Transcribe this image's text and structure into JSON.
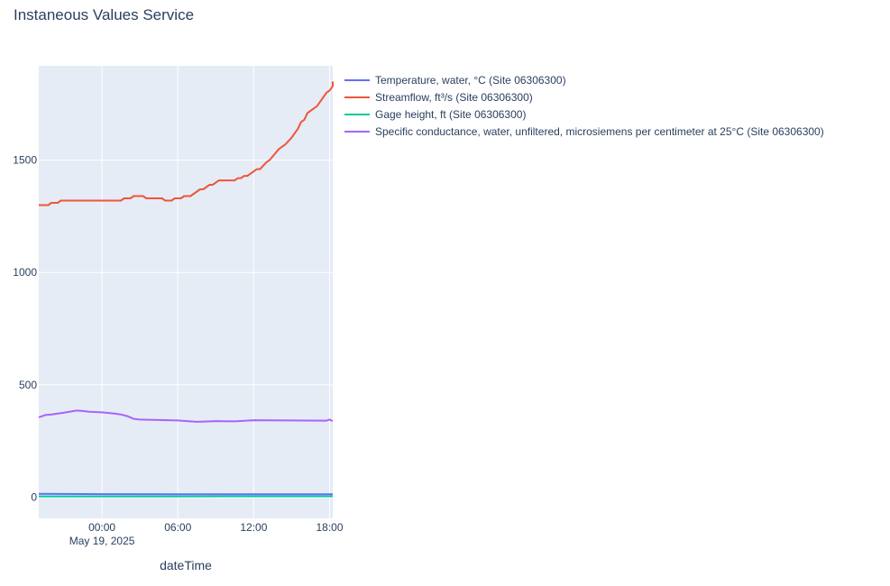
{
  "chart_data": {
    "type": "line",
    "title": "Instaneous Values Service",
    "xlabel": "dateTime",
    "ylabel": "",
    "x_range": [
      "2025-05-18 19:00",
      "2025-05-19 18:15"
    ],
    "ylim": [
      -95,
      1920
    ],
    "grid": true,
    "legend_placement": "top-right outside",
    "plot_bgcolor": "#e5ecf6",
    "x_ticks": [
      {
        "x": "2025-05-19 00:00",
        "label": "00:00",
        "sublabel": "May 19, 2025"
      },
      {
        "x": "2025-05-19 06:00",
        "label": "06:00",
        "sublabel": ""
      },
      {
        "x": "2025-05-19 12:00",
        "label": "12:00",
        "sublabel": ""
      },
      {
        "x": "2025-05-19 18:00",
        "label": "18:00",
        "sublabel": ""
      }
    ],
    "y_ticks": [
      0,
      500,
      1000,
      1500
    ],
    "y_tick_labels": [
      "0",
      "500",
      "1000",
      "1500"
    ],
    "series": [
      {
        "name": "Temperature, water, °C (Site 06306300)",
        "color": "#636efa",
        "points": [
          [
            "2025-05-18 19:00",
            14
          ],
          [
            "2025-05-19 00:00",
            13
          ],
          [
            "2025-05-19 06:00",
            12
          ],
          [
            "2025-05-19 12:00",
            12
          ],
          [
            "2025-05-19 18:15",
            12
          ]
        ]
      },
      {
        "name": "Streamflow, ft³/s (Site 06306300)",
        "color": "#ef553b",
        "points": [
          [
            "2025-05-18 19:00",
            1300
          ],
          [
            "2025-05-18 19:45",
            1300
          ],
          [
            "2025-05-18 20:00",
            1310
          ],
          [
            "2025-05-18 20:30",
            1310
          ],
          [
            "2025-05-18 20:45",
            1320
          ],
          [
            "2025-05-19 00:00",
            1320
          ],
          [
            "2025-05-19 01:30",
            1320
          ],
          [
            "2025-05-19 01:45",
            1330
          ],
          [
            "2025-05-19 02:15",
            1330
          ],
          [
            "2025-05-19 02:30",
            1340
          ],
          [
            "2025-05-19 03:15",
            1340
          ],
          [
            "2025-05-19 03:30",
            1330
          ],
          [
            "2025-05-19 04:45",
            1330
          ],
          [
            "2025-05-19 05:00",
            1320
          ],
          [
            "2025-05-19 05:30",
            1320
          ],
          [
            "2025-05-19 05:45",
            1330
          ],
          [
            "2025-05-19 06:15",
            1330
          ],
          [
            "2025-05-19 06:30",
            1340
          ],
          [
            "2025-05-19 07:00",
            1340
          ],
          [
            "2025-05-19 07:45",
            1370
          ],
          [
            "2025-05-19 08:00",
            1370
          ],
          [
            "2025-05-19 08:30",
            1390
          ],
          [
            "2025-05-19 08:45",
            1390
          ],
          [
            "2025-05-19 09:15",
            1410
          ],
          [
            "2025-05-19 10:30",
            1410
          ],
          [
            "2025-05-19 10:45",
            1420
          ],
          [
            "2025-05-19 11:00",
            1420
          ],
          [
            "2025-05-19 11:15",
            1430
          ],
          [
            "2025-05-19 11:30",
            1430
          ],
          [
            "2025-05-19 12:00",
            1450
          ],
          [
            "2025-05-19 12:15",
            1460
          ],
          [
            "2025-05-19 12:30",
            1460
          ],
          [
            "2025-05-19 13:00",
            1490
          ],
          [
            "2025-05-19 13:15",
            1500
          ],
          [
            "2025-05-19 14:00",
            1550
          ],
          [
            "2025-05-19 14:30",
            1570
          ],
          [
            "2025-05-19 15:00",
            1600
          ],
          [
            "2025-05-19 15:30",
            1640
          ],
          [
            "2025-05-19 15:45",
            1670
          ],
          [
            "2025-05-19 16:00",
            1680
          ],
          [
            "2025-05-19 16:15",
            1710
          ],
          [
            "2025-05-19 16:30",
            1720
          ],
          [
            "2025-05-19 17:00",
            1740
          ],
          [
            "2025-05-19 17:30",
            1780
          ],
          [
            "2025-05-19 17:45",
            1800
          ],
          [
            "2025-05-19 18:00",
            1810
          ],
          [
            "2025-05-19 18:15",
            1830
          ],
          [
            "2025-05-19 18:15",
            1850
          ]
        ]
      },
      {
        "name": "Gage height, ft (Site 06306300)",
        "color": "#00cc96",
        "points": [
          [
            "2025-05-18 19:00",
            3
          ],
          [
            "2025-05-19 00:00",
            3
          ],
          [
            "2025-05-19 06:00",
            3
          ],
          [
            "2025-05-19 12:00",
            3.2
          ],
          [
            "2025-05-19 18:15",
            3.5
          ]
        ]
      },
      {
        "name": "Specific conductance, water, unfiltered, microsiemens per centimeter at 25°C (Site 06306300)",
        "color": "#ab63fa",
        "points": [
          [
            "2025-05-18 19:00",
            355
          ],
          [
            "2025-05-18 19:30",
            365
          ],
          [
            "2025-05-18 20:00",
            368
          ],
          [
            "2025-05-18 21:00",
            376
          ],
          [
            "2025-05-18 22:00",
            385
          ],
          [
            "2025-05-18 22:30",
            383
          ],
          [
            "2025-05-18 23:00",
            380
          ],
          [
            "2025-05-19 00:00",
            377
          ],
          [
            "2025-05-19 01:00",
            372
          ],
          [
            "2025-05-19 01:30",
            368
          ],
          [
            "2025-05-19 02:00",
            360
          ],
          [
            "2025-05-19 02:30",
            348
          ],
          [
            "2025-05-19 03:00",
            345
          ],
          [
            "2025-05-19 04:30",
            343
          ],
          [
            "2025-05-19 06:00",
            341
          ],
          [
            "2025-05-19 07:30",
            335
          ],
          [
            "2025-05-19 09:00",
            338
          ],
          [
            "2025-05-19 10:30",
            337
          ],
          [
            "2025-05-19 12:00",
            342
          ],
          [
            "2025-05-19 15:00",
            341
          ],
          [
            "2025-05-19 17:45",
            340
          ],
          [
            "2025-05-19 18:00",
            345
          ],
          [
            "2025-05-19 18:15",
            338
          ]
        ]
      }
    ]
  }
}
